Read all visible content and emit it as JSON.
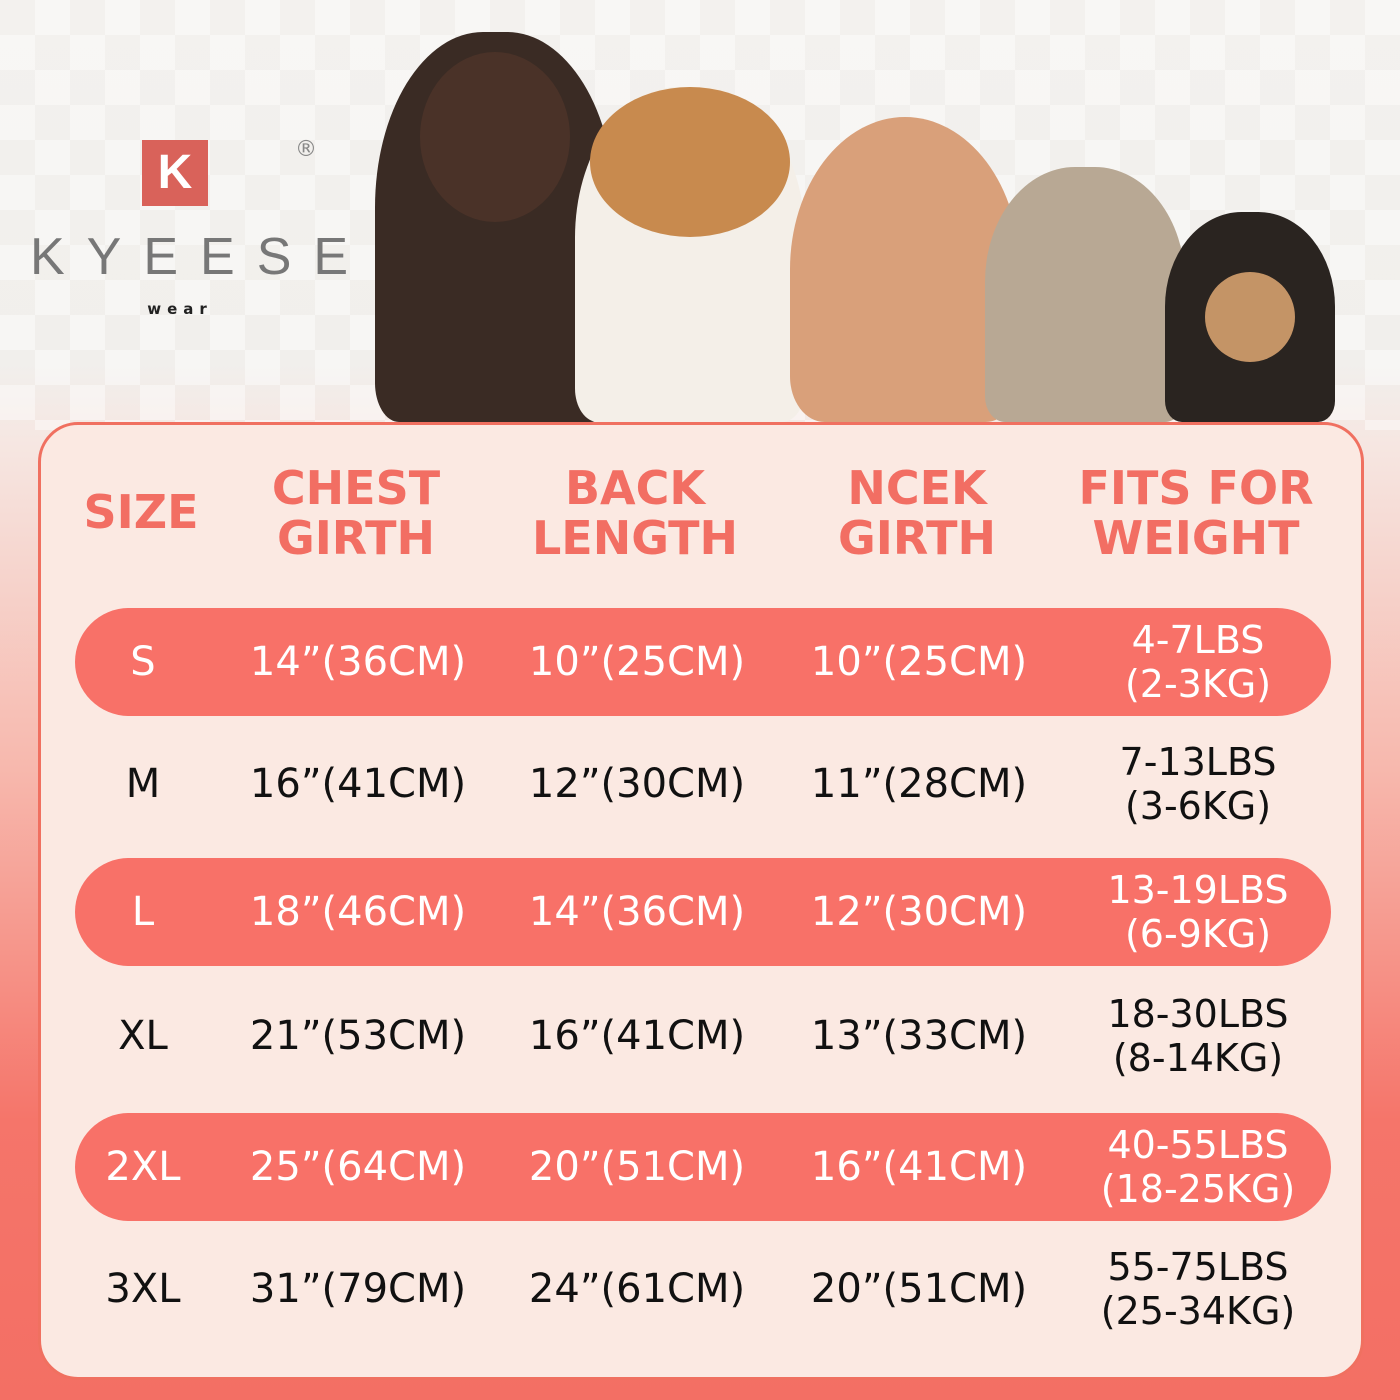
{
  "brand": {
    "logo_letter": "K",
    "name": "KYEESE",
    "sub": "wear",
    "registered": "®"
  },
  "colors": {
    "accent": "#f87168",
    "panel": "#fbe9e2",
    "header_text": "#f26e63"
  },
  "dogs": [
    "doberman",
    "beagle",
    "poodle",
    "schnauzer-mix",
    "chihuahua"
  ],
  "table": {
    "headers": [
      {
        "line1": "SIZE",
        "line2": ""
      },
      {
        "line1": "CHEST",
        "line2": "GIRTH"
      },
      {
        "line1": "BACK",
        "line2": "LENGTH"
      },
      {
        "line1": "NCEK",
        "line2": "GIRTH"
      },
      {
        "line1": "FITS FOR",
        "line2": "WEIGHT"
      }
    ],
    "rows": [
      {
        "size": "S",
        "chest": "14”(36CM)",
        "back": "10”(25CM)",
        "neck": "10”(25CM)",
        "weight_lbs": "4-7LBS",
        "weight_kg": "(2-3KG)"
      },
      {
        "size": "M",
        "chest": "16”(41CM)",
        "back": "12”(30CM)",
        "neck": "11”(28CM)",
        "weight_lbs": "7-13LBS",
        "weight_kg": "(3-6KG)"
      },
      {
        "size": "L",
        "chest": "18”(46CM)",
        "back": "14”(36CM)",
        "neck": "12”(30CM)",
        "weight_lbs": "13-19LBS",
        "weight_kg": "(6-9KG)"
      },
      {
        "size": "XL",
        "chest": "21”(53CM)",
        "back": "16”(41CM)",
        "neck": "13”(33CM)",
        "weight_lbs": "18-30LBS",
        "weight_kg": "(8-14KG)"
      },
      {
        "size": "2XL",
        "chest": "25”(64CM)",
        "back": "20”(51CM)",
        "neck": "16”(41CM)",
        "weight_lbs": "40-55LBS",
        "weight_kg": "(18-25KG)"
      },
      {
        "size": "3XL",
        "chest": "31”(79CM)",
        "back": "24”(61CM)",
        "neck": "20”(51CM)",
        "weight_lbs": "55-75LBS",
        "weight_kg": "(25-34KG)"
      }
    ]
  }
}
